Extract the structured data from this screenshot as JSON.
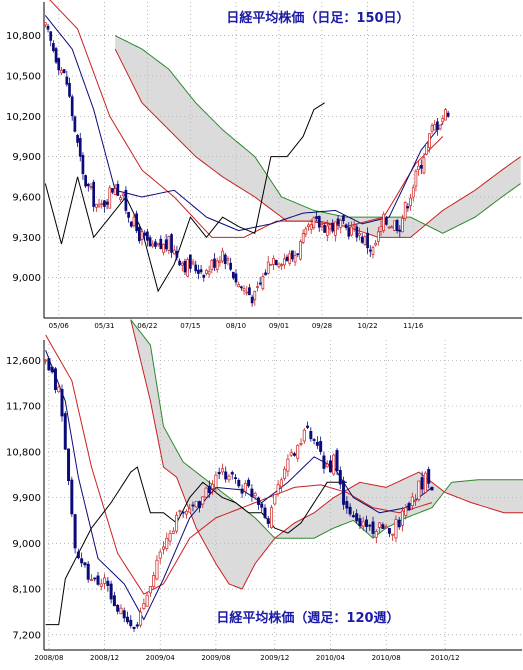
{
  "colors": {
    "cloud": "#bdbdbd",
    "tenkan": "#0b0b7a",
    "kijun": "#cc2020",
    "span_a": "#cc2020",
    "span_b": "#2a8a2a",
    "chikou": "#000000",
    "candle_up": "#cc2020",
    "candle_down": "#0b0b7a",
    "title": "#1a1aa6"
  },
  "chart_data": [
    {
      "type": "candlestick",
      "title": "日経平均株価（日足：150日）",
      "ylim": [
        8700,
        11050
      ],
      "ytick_values": [
        9000,
        9300,
        9600,
        9900,
        10200,
        10500,
        10800
      ],
      "yticks": [
        "9,000",
        "9,300",
        "9,600",
        "9,900",
        "10,200",
        "10,500",
        "10,800"
      ],
      "xticks": [
        "05/06",
        "05/31",
        "06/22",
        "07/15",
        "08/10",
        "09/01",
        "09/28",
        "10/22",
        "11/16"
      ],
      "xtick_index": [
        5,
        22,
        38,
        54,
        71,
        87,
        103,
        120,
        137
      ],
      "n_slots": 178,
      "close_path": [
        [
          0,
          10850
        ],
        [
          8,
          10450
        ],
        [
          14,
          9750
        ],
        [
          20,
          9500
        ],
        [
          26,
          9700
        ],
        [
          34,
          9350
        ],
        [
          40,
          9200
        ],
        [
          46,
          9250
        ],
        [
          52,
          9100
        ],
        [
          60,
          9050
        ],
        [
          66,
          9200
        ],
        [
          72,
          8950
        ],
        [
          78,
          8850
        ],
        [
          84,
          9150
        ],
        [
          92,
          9150
        ],
        [
          100,
          9400
        ],
        [
          108,
          9380
        ],
        [
          116,
          9350
        ],
        [
          122,
          9200
        ],
        [
          126,
          9420
        ],
        [
          132,
          9400
        ],
        [
          138,
          9750
        ],
        [
          144,
          10100
        ],
        [
          150,
          10250
        ]
      ],
      "tenkan_path": [
        [
          0,
          10950
        ],
        [
          10,
          10700
        ],
        [
          18,
          10250
        ],
        [
          26,
          9650
        ],
        [
          36,
          9600
        ],
        [
          48,
          9650
        ],
        [
          60,
          9450
        ],
        [
          72,
          9350
        ],
        [
          84,
          9400
        ],
        [
          96,
          9480
        ],
        [
          108,
          9500
        ],
        [
          118,
          9400
        ],
        [
          128,
          9450
        ],
        [
          140,
          9950
        ],
        [
          148,
          10150
        ]
      ],
      "kijun_path": [
        [
          0,
          11100
        ],
        [
          12,
          10850
        ],
        [
          24,
          10200
        ],
        [
          36,
          9800
        ],
        [
          48,
          9600
        ],
        [
          62,
          9300
        ],
        [
          74,
          9300
        ],
        [
          86,
          9420
        ],
        [
          98,
          9420
        ],
        [
          112,
          9380
        ],
        [
          126,
          9450
        ],
        [
          138,
          9850
        ],
        [
          148,
          10050
        ]
      ],
      "span_a_path": [
        [
          26,
          10700
        ],
        [
          36,
          10300
        ],
        [
          46,
          10100
        ],
        [
          56,
          9900
        ],
        [
          66,
          9750
        ],
        [
          78,
          9600
        ],
        [
          90,
          9420
        ],
        [
          102,
          9420
        ],
        [
          112,
          9380
        ],
        [
          124,
          9300
        ],
        [
          136,
          9300
        ],
        [
          148,
          9500
        ],
        [
          160,
          9650
        ],
        [
          170,
          9800
        ],
        [
          177,
          9900
        ]
      ],
      "span_b_path": [
        [
          26,
          10800
        ],
        [
          36,
          10700
        ],
        [
          46,
          10550
        ],
        [
          56,
          10300
        ],
        [
          66,
          10100
        ],
        [
          78,
          9900
        ],
        [
          88,
          9600
        ],
        [
          100,
          9500
        ],
        [
          112,
          9450
        ],
        [
          124,
          9450
        ],
        [
          136,
          9450
        ],
        [
          148,
          9330
        ],
        [
          160,
          9450
        ],
        [
          170,
          9600
        ],
        [
          177,
          9700
        ]
      ],
      "chikou_path": [
        [
          0,
          9700
        ],
        [
          6,
          9250
        ],
        [
          12,
          9750
        ],
        [
          18,
          9300
        ],
        [
          24,
          9450
        ],
        [
          30,
          9600
        ],
        [
          36,
          9350
        ],
        [
          42,
          8900
        ],
        [
          48,
          9100
        ],
        [
          54,
          9450
        ],
        [
          60,
          9300
        ],
        [
          66,
          9450
        ],
        [
          72,
          9380
        ],
        [
          78,
          9330
        ],
        [
          84,
          9900
        ],
        [
          90,
          9900
        ],
        [
          96,
          10050
        ],
        [
          100,
          10250
        ],
        [
          104,
          10300
        ]
      ]
    },
    {
      "type": "candlestick",
      "title": "日経平均株価（週足：120週）",
      "ylim": [
        6900,
        13000
      ],
      "ytick_values": [
        7200,
        8100,
        9000,
        9900,
        10800,
        11700,
        12600
      ],
      "yticks": [
        "7,200",
        "8,100",
        "9,000",
        "9,900",
        "10,800",
        "11,700",
        "12,600"
      ],
      "xticks": [
        "2008/08",
        "2008/12",
        "2009/04",
        "2009/08",
        "2009/12",
        "2010/04",
        "2010/08",
        "2010/12"
      ],
      "xtick_index": [
        1,
        18,
        35,
        52,
        70,
        87,
        104,
        122
      ],
      "n_slots": 146,
      "close_path": [
        [
          0,
          12500
        ],
        [
          4,
          12000
        ],
        [
          6,
          10900
        ],
        [
          8,
          9500
        ],
        [
          10,
          8600
        ],
        [
          14,
          8300
        ],
        [
          18,
          8200
        ],
        [
          22,
          7700
        ],
        [
          26,
          7300
        ],
        [
          28,
          7400
        ],
        [
          32,
          8300
        ],
        [
          36,
          8900
        ],
        [
          40,
          9500
        ],
        [
          44,
          9700
        ],
        [
          48,
          9900
        ],
        [
          52,
          10250
        ],
        [
          56,
          10400
        ],
        [
          60,
          10100
        ],
        [
          64,
          10000
        ],
        [
          68,
          9500
        ],
        [
          72,
          10400
        ],
        [
          76,
          10800
        ],
        [
          80,
          11200
        ],
        [
          82,
          10900
        ],
        [
          86,
          10500
        ],
        [
          88,
          10600
        ],
        [
          92,
          9600
        ],
        [
          96,
          9400
        ],
        [
          100,
          9300
        ],
        [
          104,
          9200
        ],
        [
          108,
          9450
        ],
        [
          112,
          9900
        ],
        [
          116,
          10300
        ],
        [
          118,
          10200
        ]
      ],
      "tenkan_path": [
        [
          0,
          12800
        ],
        [
          6,
          11800
        ],
        [
          10,
          10300
        ],
        [
          16,
          8700
        ],
        [
          24,
          8200
        ],
        [
          30,
          7500
        ],
        [
          36,
          8300
        ],
        [
          44,
          9500
        ],
        [
          52,
          10100
        ],
        [
          60,
          10050
        ],
        [
          66,
          9800
        ],
        [
          74,
          10200
        ],
        [
          82,
          10700
        ],
        [
          88,
          10500
        ],
        [
          94,
          9900
        ],
        [
          102,
          9600
        ],
        [
          110,
          9700
        ],
        [
          118,
          10100
        ]
      ],
      "kijun_path": [
        [
          0,
          13100
        ],
        [
          8,
          12200
        ],
        [
          14,
          10500
        ],
        [
          22,
          8800
        ],
        [
          30,
          8000
        ],
        [
          36,
          8200
        ],
        [
          44,
          9100
        ],
        [
          52,
          9500
        ],
        [
          60,
          9700
        ],
        [
          68,
          9900
        ],
        [
          76,
          10100
        ],
        [
          84,
          10150
        ],
        [
          92,
          10000
        ],
        [
          100,
          9700
        ],
        [
          108,
          9600
        ],
        [
          118,
          9800
        ]
      ],
      "span_a_path": [
        [
          26,
          13400
        ],
        [
          32,
          11800
        ],
        [
          36,
          10500
        ],
        [
          40,
          10300
        ],
        [
          46,
          9300
        ],
        [
          52,
          8600
        ],
        [
          56,
          8200
        ],
        [
          60,
          8100
        ],
        [
          64,
          8600
        ],
        [
          70,
          9100
        ],
        [
          76,
          9400
        ],
        [
          82,
          9600
        ],
        [
          88,
          9900
        ],
        [
          96,
          10200
        ],
        [
          104,
          10100
        ],
        [
          114,
          10400
        ],
        [
          122,
          10000
        ],
        [
          130,
          9800
        ],
        [
          140,
          9600
        ],
        [
          146,
          9600
        ]
      ],
      "span_b_path": [
        [
          26,
          13400
        ],
        [
          32,
          12900
        ],
        [
          36,
          11300
        ],
        [
          42,
          10600
        ],
        [
          50,
          10200
        ],
        [
          58,
          9800
        ],
        [
          64,
          9500
        ],
        [
          70,
          9100
        ],
        [
          76,
          9100
        ],
        [
          82,
          9100
        ],
        [
          88,
          9300
        ],
        [
          94,
          9450
        ],
        [
          100,
          9100
        ],
        [
          104,
          9300
        ],
        [
          110,
          9500
        ],
        [
          118,
          9700
        ],
        [
          124,
          10200
        ],
        [
          132,
          10250
        ],
        [
          146,
          10250
        ]
      ],
      "chikou_path": [
        [
          0,
          7400
        ],
        [
          4,
          7400
        ],
        [
          6,
          8300
        ],
        [
          10,
          8800
        ],
        [
          14,
          9300
        ],
        [
          20,
          9800
        ],
        [
          26,
          10400
        ],
        [
          28,
          10500
        ],
        [
          32,
          9600
        ],
        [
          36,
          9600
        ],
        [
          40,
          9400
        ],
        [
          44,
          9900
        ],
        [
          48,
          10200
        ],
        [
          54,
          9900
        ],
        [
          58,
          9800
        ],
        [
          62,
          9600
        ],
        [
          66,
          9600
        ],
        [
          70,
          9300
        ],
        [
          74,
          9200
        ],
        [
          78,
          9400
        ],
        [
          82,
          9800
        ],
        [
          86,
          10200
        ],
        [
          92,
          10200
        ]
      ]
    }
  ]
}
